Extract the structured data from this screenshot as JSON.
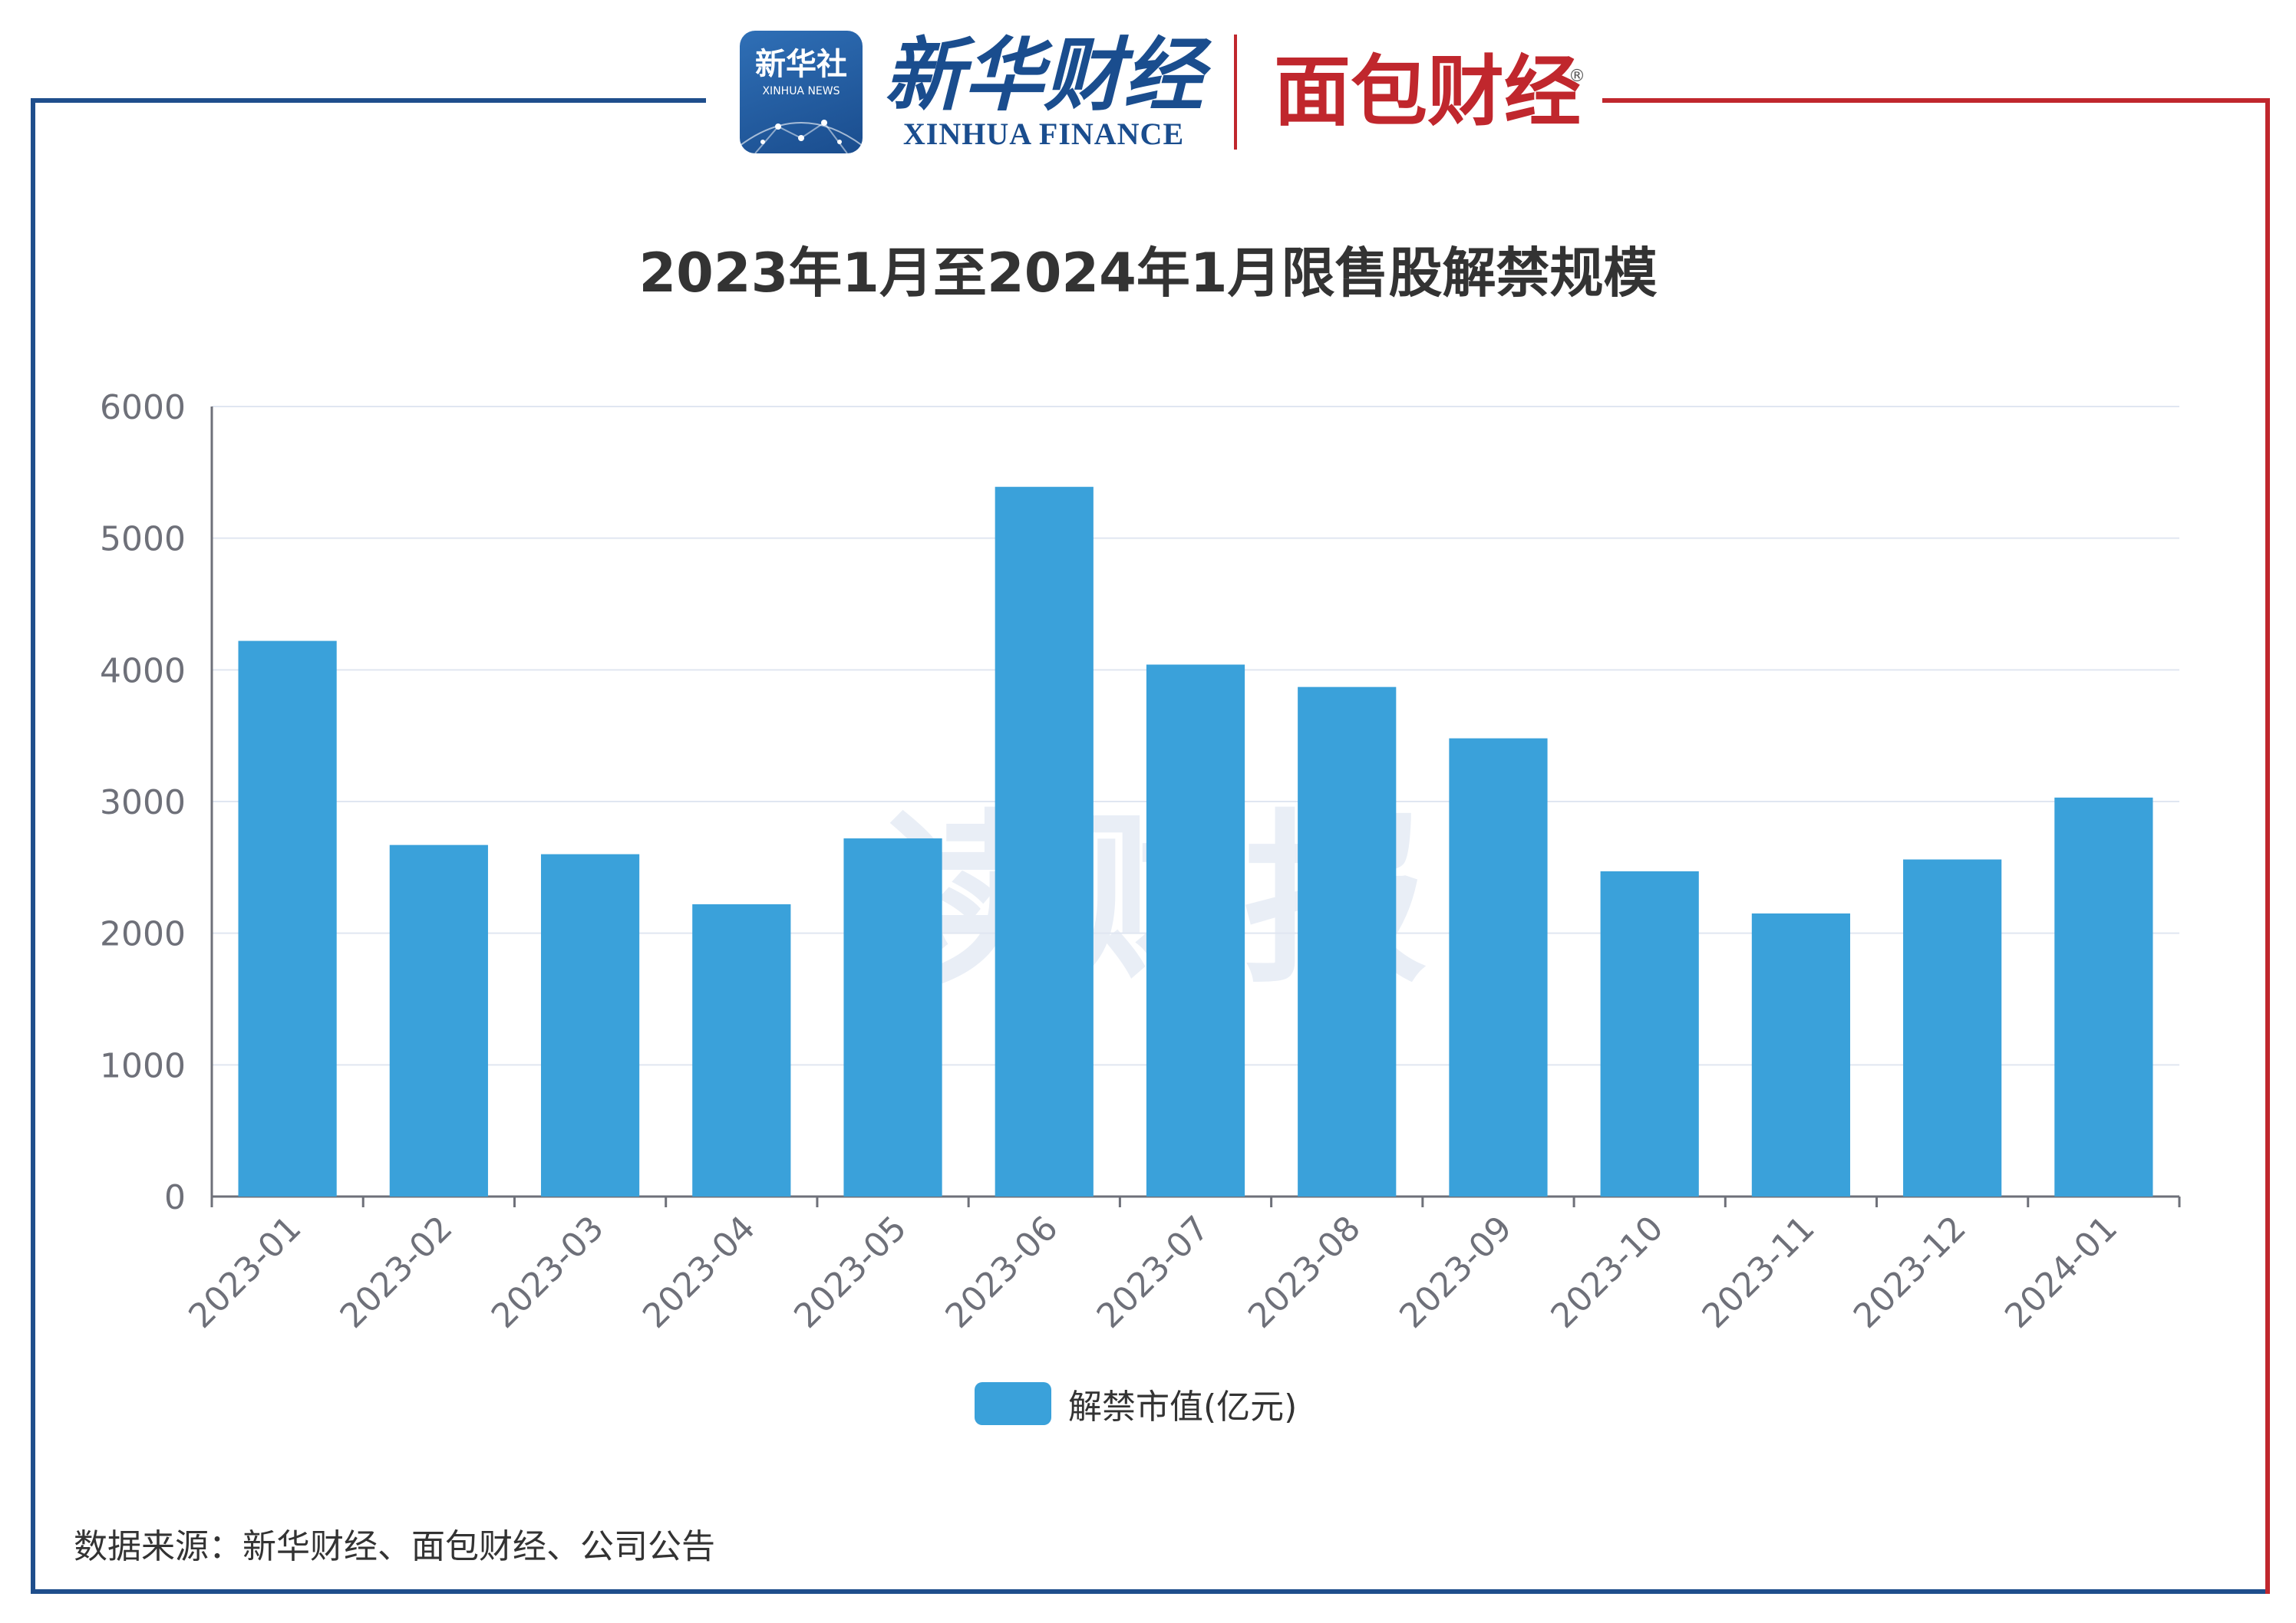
{
  "header": {
    "xinhua_badge_cn": "新华社",
    "xinhua_badge_en": "XINHUA NEWS",
    "xinhua_finance_cn": "新华财经",
    "xinhua_finance_en": "XINHUA FINANCE",
    "mianbao_logo": "面包财经",
    "reg_mark": "®"
  },
  "watermark": "读财报",
  "source": "数据来源：新华财经、面包财经、公司公告",
  "colors": {
    "bar": "#3aa1da",
    "frame_blue": "#1f4e8c",
    "frame_red": "#c0272d",
    "grid": "#e0e6f1"
  },
  "chart_data": {
    "type": "bar",
    "title": "2023年1月至2024年1月限售股解禁规模",
    "categories": [
      "2023-01",
      "2023-02",
      "2023-03",
      "2023-04",
      "2023-05",
      "2023-06",
      "2023-07",
      "2023-08",
      "2023-09",
      "2023-10",
      "2023-11",
      "2023-12",
      "2024-01"
    ],
    "series": [
      {
        "name": "解禁市值(亿元)",
        "values": [
          4220,
          2670,
          2600,
          2220,
          2720,
          5390,
          4040,
          3870,
          3480,
          2470,
          2150,
          2560,
          3030
        ]
      }
    ],
    "ylim": [
      0,
      6000
    ],
    "yticks": [
      0,
      1000,
      2000,
      3000,
      4000,
      5000,
      6000
    ],
    "grid": true,
    "legend": "bottom-center"
  }
}
